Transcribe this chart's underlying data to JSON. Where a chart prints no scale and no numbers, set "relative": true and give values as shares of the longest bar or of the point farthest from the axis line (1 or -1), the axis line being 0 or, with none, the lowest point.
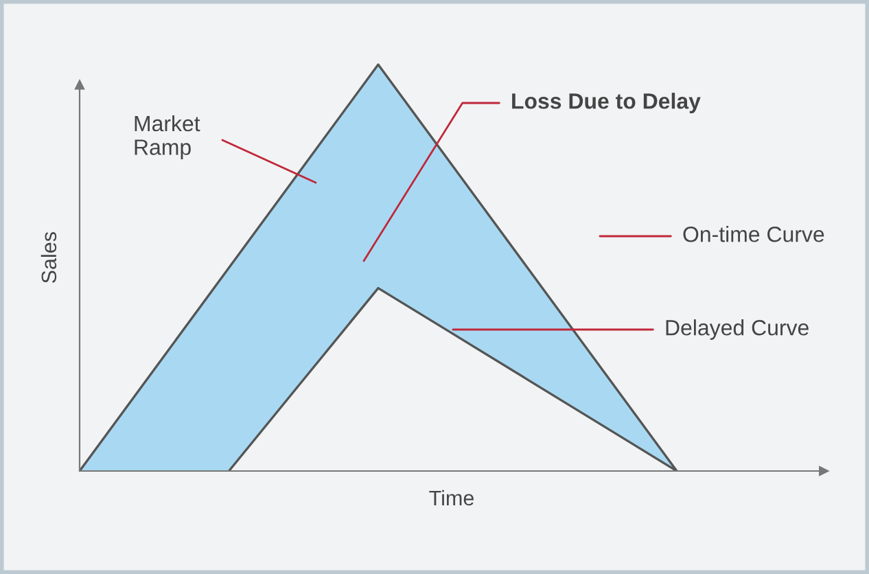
{
  "chart_data": {
    "type": "line",
    "relative": true,
    "xlabel": "Time",
    "ylabel": "Sales",
    "categories": [
      null,
      null,
      null,
      null,
      null,
      null,
      null,
      null,
      null
    ],
    "series": [
      {
        "name": "On-time Curve",
        "color": "#555555",
        "values": [
          0,
          0.25,
          0.5,
          0.75,
          1,
          0.75,
          0.5,
          0.25,
          0
        ],
        "lower": [
          0,
          0,
          0,
          0.225,
          0.45,
          0.3375,
          0.225,
          0.1125,
          0
        ],
        "upper": [
          0,
          0.25,
          0.5,
          0.75,
          1,
          0.75,
          0.5,
          0.25,
          0
        ]
      },
      {
        "name": "Delayed Curve",
        "color": "#555555",
        "values": [
          null,
          null,
          0,
          0.225,
          0.45,
          0.3375,
          0.225,
          0.1125,
          0
        ]
      }
    ],
    "annotations": [
      "Market Ramp",
      "Loss Due to Delay"
    ],
    "line_style": "solid"
  }
}
